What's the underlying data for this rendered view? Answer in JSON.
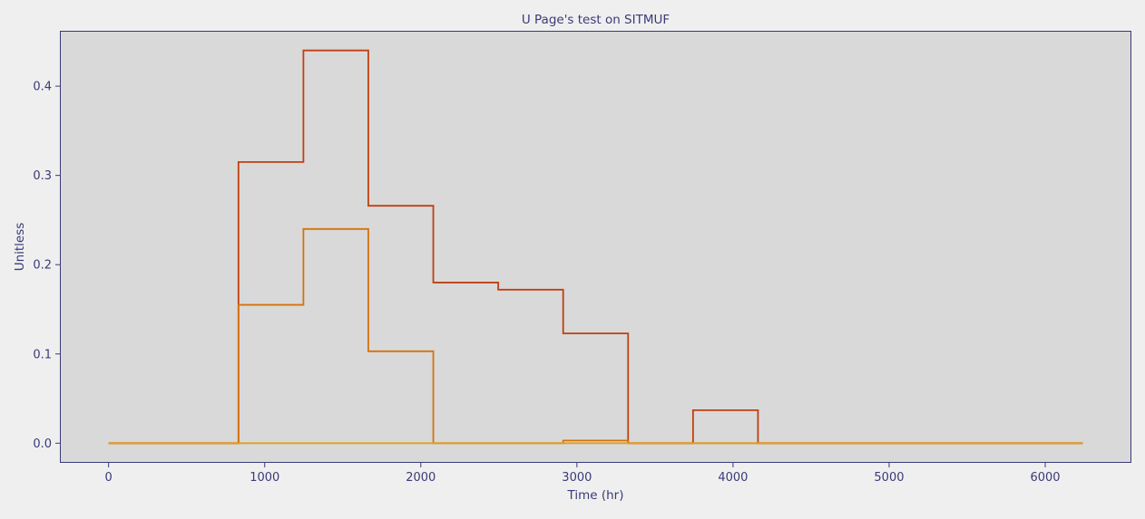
{
  "chart_data": {
    "type": "line",
    "step": "post",
    "title": "U Page's test on SITMUF",
    "xlabel": "Time (hr)",
    "ylabel": "Unitless",
    "xlim": [
      -312,
      6552
    ],
    "ylim": [
      -0.022,
      0.462
    ],
    "xticks": [
      0,
      1000,
      2000,
      3000,
      4000,
      5000,
      6000
    ],
    "yticks": [
      0.0,
      0.1,
      0.2,
      0.3,
      0.4
    ],
    "xtick_labels": [
      "0",
      "1000",
      "2000",
      "3000",
      "4000",
      "5000",
      "6000"
    ],
    "ytick_labels": [
      "0.0",
      "0.1",
      "0.2",
      "0.3",
      "0.4"
    ],
    "grid": false,
    "legend": "none",
    "plot_background": "#d9d9d9",
    "figure_background": "#efefef",
    "text_color": "#3a3a78",
    "series": [
      {
        "color": "#c04010",
        "x": [
          0,
          832,
          1248,
          1664,
          2080,
          2496,
          2912,
          3328,
          3744,
          4160,
          6240
        ],
        "y": [
          0.0,
          0.315,
          0.44,
          0.266,
          0.18,
          0.172,
          0.123,
          0.0,
          0.037,
          0.0,
          0.0
        ]
      },
      {
        "color": "#d4720c",
        "x": [
          0,
          832,
          1248,
          1664,
          2080,
          2912,
          3328,
          6240
        ],
        "y": [
          0.0,
          0.155,
          0.24,
          0.103,
          0.0,
          0.003,
          0.0,
          0.0
        ]
      },
      {
        "color": "#e0a020",
        "x": [
          0,
          6240
        ],
        "y": [
          0.0,
          0.0
        ]
      }
    ]
  }
}
